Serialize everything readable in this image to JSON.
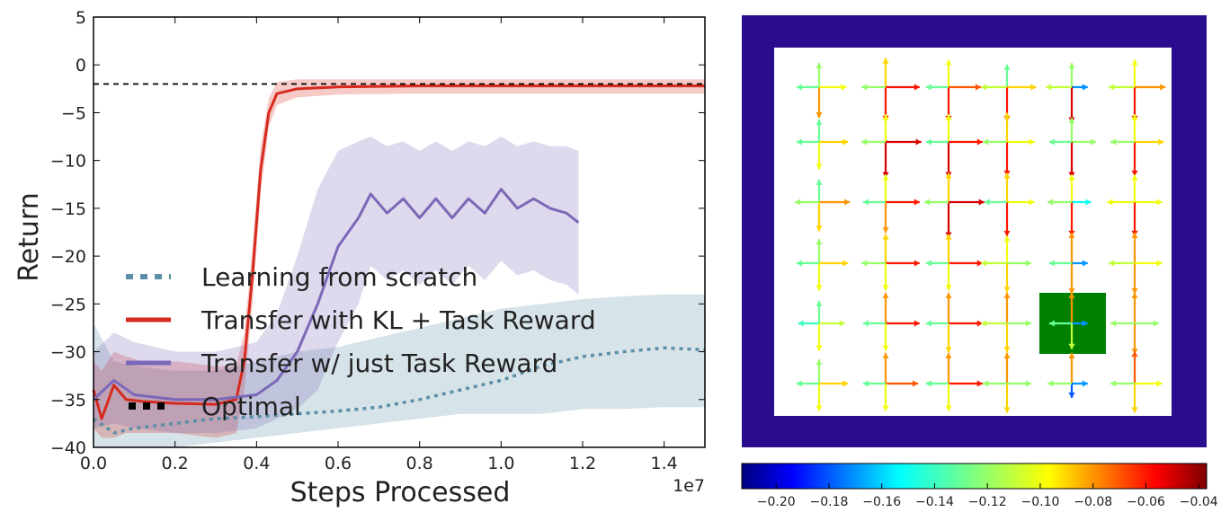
{
  "chart_data": [
    {
      "type": "line",
      "xlabel": "Steps Processed",
      "ylabel": "Return",
      "x_multiplier_label": "1e7",
      "xlim": [
        0.0,
        1.5
      ],
      "ylim": [
        -40,
        5
      ],
      "xticks": [
        0.0,
        0.2,
        0.4,
        0.6,
        0.8,
        1.0,
        1.2,
        1.4
      ],
      "xtick_labels": [
        "0.0",
        "0.2",
        "0.4",
        "0.6",
        "0.8",
        "1.0",
        "1.2",
        "1.4"
      ],
      "yticks": [
        5,
        0,
        -5,
        -10,
        -15,
        -20,
        -25,
        -30,
        -35,
        -40
      ],
      "ytick_labels": [
        "5",
        "0",
        "−5",
        "−10",
        "−15",
        "−20",
        "−25",
        "−30",
        "−35",
        "−40"
      ],
      "grid": false,
      "legend_position": "lower-left",
      "series": [
        {
          "name": "Learning from scratch",
          "color": "#5b8fa8",
          "style": "dotted",
          "x": [
            0.0,
            0.05,
            0.1,
            0.2,
            0.3,
            0.4,
            0.5,
            0.6,
            0.7,
            0.8,
            0.9,
            1.0,
            1.1,
            1.2,
            1.3,
            1.4,
            1.5
          ],
          "y": [
            -37.0,
            -38.5,
            -38.0,
            -37.5,
            -37.0,
            -36.8,
            -36.5,
            -36.2,
            -35.8,
            -35.0,
            -34.0,
            -33.0,
            -31.5,
            -30.5,
            -30.0,
            -29.6,
            -29.8
          ],
          "band_upper": [
            -27.0,
            -31.0,
            -31.5,
            -32.0,
            -32.0,
            -31.0,
            -30.0,
            -29.5,
            -28.5,
            -27.5,
            -26.5,
            -25.5,
            -25.0,
            -24.5,
            -24.2,
            -24.0,
            -24.0
          ],
          "band_lower": [
            -40.0,
            -40.0,
            -40.0,
            -40.0,
            -39.5,
            -39.0,
            -38.5,
            -38.0,
            -37.5,
            -37.0,
            -36.5,
            -36.5,
            -36.5,
            -36.0,
            -36.0,
            -35.8,
            -35.8
          ]
        },
        {
          "name": "Transfer with KL + Task Reward",
          "color": "#d62a1e",
          "style": "solid",
          "x": [
            0.0,
            0.02,
            0.05,
            0.08,
            0.12,
            0.2,
            0.3,
            0.35,
            0.37,
            0.39,
            0.41,
            0.43,
            0.45,
            0.5,
            0.6,
            0.8,
            1.0,
            1.2,
            1.5
          ],
          "y": [
            -34.0,
            -37.0,
            -33.5,
            -35.0,
            -35.2,
            -35.4,
            -35.5,
            -35.0,
            -31.0,
            -22.0,
            -11.0,
            -5.0,
            -3.0,
            -2.5,
            -2.3,
            -2.2,
            -2.2,
            -2.2,
            -2.2
          ],
          "band_upper": [
            -31.0,
            -32.0,
            -30.0,
            -30.5,
            -31.0,
            -31.0,
            -31.5,
            -31.5,
            -28.0,
            -19.0,
            -8.5,
            -3.5,
            -1.8,
            -1.5,
            -1.5,
            -1.5,
            -1.5,
            -1.5,
            -1.5
          ],
          "band_lower": [
            -38.0,
            -39.0,
            -39.0,
            -38.5,
            -38.5,
            -38.5,
            -39.0,
            -38.5,
            -34.0,
            -25.0,
            -13.5,
            -6.5,
            -4.2,
            -3.4,
            -3.1,
            -3.0,
            -3.0,
            -3.0,
            -3.0
          ]
        },
        {
          "name": "Transfer w/ just Task Reward",
          "color": "#7b68b8",
          "style": "solid",
          "x": [
            0.0,
            0.05,
            0.1,
            0.2,
            0.3,
            0.4,
            0.45,
            0.5,
            0.55,
            0.6,
            0.65,
            0.68,
            0.72,
            0.76,
            0.8,
            0.84,
            0.88,
            0.92,
            0.96,
            1.0,
            1.04,
            1.08,
            1.12,
            1.16,
            1.19
          ],
          "y": [
            -35.0,
            -33.0,
            -34.5,
            -35.0,
            -35.0,
            -34.5,
            -33.0,
            -30.0,
            -25.0,
            -19.0,
            -16.0,
            -13.5,
            -15.5,
            -14.0,
            -16.0,
            -14.0,
            -16.0,
            -14.0,
            -15.5,
            -13.0,
            -15.0,
            -14.0,
            -15.0,
            -15.5,
            -16.5
          ],
          "band_upper": [
            -30.0,
            -28.0,
            -29.0,
            -30.0,
            -30.0,
            -29.0,
            -26.0,
            -20.0,
            -13.0,
            -9.0,
            -8.0,
            -7.5,
            -8.5,
            -8.0,
            -9.0,
            -8.0,
            -9.0,
            -8.0,
            -8.5,
            -7.5,
            -8.5,
            -8.0,
            -8.5,
            -8.5,
            -9.0
          ],
          "band_lower": [
            -38.0,
            -37.5,
            -38.0,
            -38.5,
            -38.5,
            -38.0,
            -37.0,
            -36.0,
            -34.0,
            -29.0,
            -25.0,
            -21.0,
            -22.5,
            -21.5,
            -23.0,
            -21.5,
            -23.0,
            -21.0,
            -22.5,
            -20.5,
            -22.0,
            -21.5,
            -22.5,
            -23.0,
            -24.0
          ]
        },
        {
          "name": "Optimal",
          "color": "#000000",
          "style": "dashed",
          "x": [
            0.0,
            1.5
          ],
          "y": [
            -2.0,
            -2.0
          ]
        }
      ]
    },
    {
      "type": "heatmap",
      "description_of_marks": "quiver",
      "grid_rows": 6,
      "grid_cols": 6,
      "wall_color": "#2a0d8e",
      "goal_color": "#008000",
      "goal_cell": [
        4,
        4
      ],
      "colorbar": {
        "ticks": [
          -0.2,
          -0.18,
          -0.16,
          -0.14,
          -0.12,
          -0.1,
          -0.08,
          -0.06,
          -0.04
        ],
        "tick_labels": [
          "−0.20",
          "−0.18",
          "−0.16",
          "−0.14",
          "−0.12",
          "−0.10",
          "−0.08",
          "−0.06",
          "−0.04"
        ],
        "vmin": -0.213,
        "vmax": -0.037,
        "colormap": "jet"
      },
      "arrow_directions": [
        "up",
        "right",
        "down",
        "left"
      ],
      "cells": [
        [
          [
            -0.12,
            -0.1,
            -0.08,
            -0.13
          ],
          [
            -0.09,
            -0.06,
            -0.06,
            -0.12
          ],
          [
            -0.1,
            -0.07,
            -0.06,
            -0.13
          ],
          [
            -0.13,
            -0.09,
            -0.06,
            -0.11
          ],
          [
            -0.12,
            -0.17,
            -0.05,
            -0.11
          ],
          [
            -0.1,
            -0.08,
            -0.06,
            -0.11
          ]
        ],
        [
          [
            -0.13,
            -0.09,
            -0.1,
            -0.13
          ],
          [
            -0.1,
            -0.05,
            -0.05,
            -0.12
          ],
          [
            -0.1,
            -0.06,
            -0.05,
            -0.13
          ],
          [
            -0.09,
            -0.1,
            -0.06,
            -0.12
          ],
          [
            -0.12,
            -0.12,
            -0.05,
            -0.13
          ],
          [
            -0.1,
            -0.09,
            -0.06,
            -0.12
          ]
        ],
        [
          [
            -0.13,
            -0.08,
            -0.09,
            -0.12
          ],
          [
            -0.1,
            -0.06,
            -0.08,
            -0.13
          ],
          [
            -0.09,
            -0.05,
            -0.05,
            -0.12
          ],
          [
            -0.09,
            -0.1,
            -0.06,
            -0.13
          ],
          [
            -0.1,
            -0.15,
            -0.06,
            -0.12
          ],
          [
            -0.1,
            -0.1,
            -0.06,
            -0.1
          ]
        ],
        [
          [
            -0.12,
            -0.09,
            -0.1,
            -0.13
          ],
          [
            -0.09,
            -0.06,
            -0.1,
            -0.12
          ],
          [
            -0.09,
            -0.06,
            -0.1,
            -0.13
          ],
          [
            -0.1,
            -0.12,
            -0.09,
            -0.11
          ],
          [
            -0.08,
            -0.17,
            -0.08,
            -0.13
          ],
          [
            -0.08,
            -0.1,
            -0.08,
            -0.11
          ]
        ],
        [
          [
            -0.13,
            -0.11,
            -0.1,
            -0.14
          ],
          [
            -0.08,
            -0.06,
            -0.1,
            -0.13
          ],
          [
            -0.08,
            -0.06,
            -0.09,
            -0.13
          ],
          [
            -0.08,
            -0.12,
            -0.09,
            -0.11
          ],
          [
            -0.08,
            -0.17,
            -0.11,
            -0.13
          ],
          [
            -0.08,
            -0.12,
            -0.08,
            -0.12
          ]
        ],
        [
          [
            -0.12,
            -0.09,
            -0.1,
            -0.13
          ],
          [
            -0.08,
            -0.07,
            -0.1,
            -0.13
          ],
          [
            -0.08,
            -0.06,
            -0.1,
            -0.13
          ],
          [
            -0.08,
            -0.12,
            -0.09,
            -0.12
          ],
          [
            -0.08,
            -0.17,
            -0.18,
            -0.12
          ],
          [
            -0.07,
            -0.1,
            -0.09,
            -0.12
          ]
        ]
      ]
    }
  ]
}
